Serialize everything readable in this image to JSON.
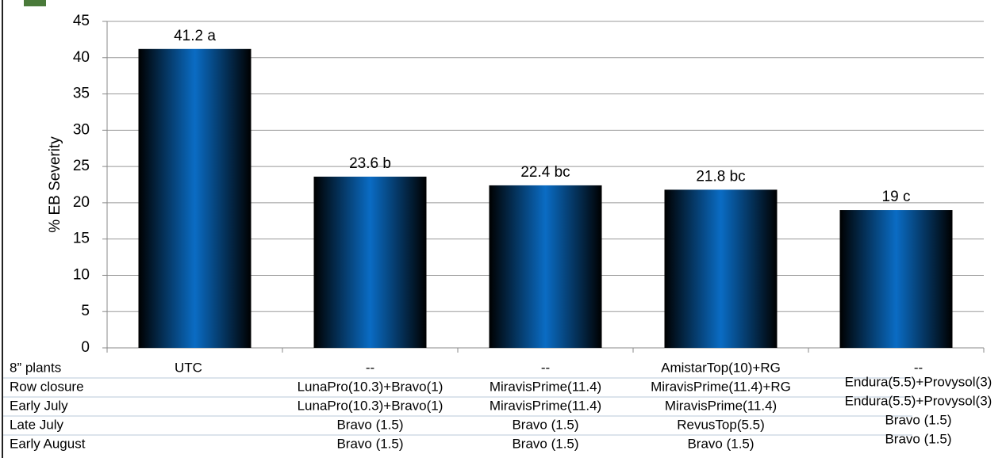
{
  "chart_data": {
    "type": "bar",
    "y_label": "% EB Severity",
    "values": [
      41.2,
      23.6,
      22.4,
      21.8,
      19
    ],
    "value_labels": [
      "41.2 a",
      "23.6 b",
      "22.4 bc",
      "21.8 bc",
      "19 c"
    ],
    "color": "#0a6cc4",
    "ylim": [
      0,
      45
    ],
    "yticks": [
      0,
      5,
      10,
      15,
      20,
      25,
      30,
      35,
      40,
      45
    ],
    "grid": true,
    "table": {
      "rows": [
        {
          "label": "8” plants",
          "cells": [
            "UTC",
            "--",
            "--",
            "AmistarTop(10)+RG",
            "--"
          ]
        },
        {
          "label": "Row closure",
          "cells": [
            "",
            "LunaPro(10.3)+Bravo(1)",
            "MiravisPrime(11.4)",
            "MiravisPrime(11.4)+RG",
            "Endura(5.5)+Provysol(3)"
          ]
        },
        {
          "label": "Early July",
          "cells": [
            "",
            "LunaPro(10.3)+Bravo(1)",
            "MiravisPrime(11.4)",
            "MiravisPrime(11.4)",
            "Endura(5.5)+Provysol(3)"
          ]
        },
        {
          "label": "Late July",
          "cells": [
            "",
            "Bravo (1.5)",
            "Bravo (1.5)",
            "RevusTop(5.5)",
            "Bravo (1.5)"
          ]
        },
        {
          "label": "Early August",
          "cells": [
            "",
            "Bravo (1.5)",
            "Bravo (1.5)",
            "Bravo (1.5)",
            "Bravo (1.5)"
          ]
        }
      ]
    }
  }
}
